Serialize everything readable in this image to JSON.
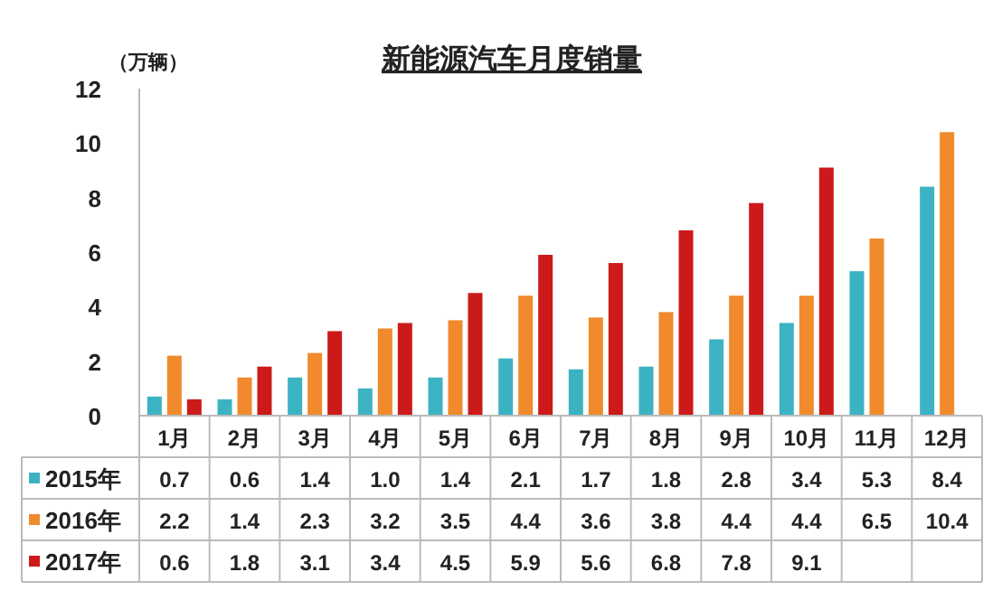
{
  "chart_data": {
    "type": "bar",
    "title": "新能源汽车月度销量",
    "ylabel": "（万辆）",
    "categories": [
      "1月",
      "2月",
      "3月",
      "4月",
      "5月",
      "6月",
      "7月",
      "8月",
      "9月",
      "10月",
      "11月",
      "12月"
    ],
    "ylim": [
      0,
      12
    ],
    "yticks": [
      0,
      2,
      4,
      6,
      8,
      10,
      12
    ],
    "legend": "bottom left",
    "series": [
      {
        "name": "2015年",
        "color": "#3bb3c3",
        "values": [
          0.7,
          0.6,
          1.4,
          1.0,
          1.4,
          2.1,
          1.7,
          1.8,
          2.8,
          3.4,
          5.3,
          8.4
        ],
        "value_labels": [
          "0.7",
          "0.6",
          "1.4",
          "1.0",
          "1.4",
          "2.1",
          "1.7",
          "1.8",
          "2.8",
          "3.4",
          "5.3",
          "8.4"
        ]
      },
      {
        "name": "2016年",
        "color": "#f08a2c",
        "values": [
          2.2,
          1.4,
          2.3,
          3.2,
          3.5,
          4.4,
          3.6,
          3.8,
          4.4,
          4.4,
          6.5,
          10.4
        ],
        "value_labels": [
          "2.2",
          "1.4",
          "2.3",
          "3.2",
          "3.5",
          "4.4",
          "3.6",
          "3.8",
          "4.4",
          "4.4",
          "6.5",
          "10.4"
        ]
      },
      {
        "name": "2017年",
        "color": "#cc1a1a",
        "values": [
          0.6,
          1.8,
          3.1,
          3.4,
          4.5,
          5.9,
          5.6,
          6.8,
          7.8,
          9.1,
          null,
          null
        ],
        "value_labels": [
          "0.6",
          "1.8",
          "3.1",
          "3.4",
          "4.5",
          "5.9",
          "5.6",
          "6.8",
          "7.8",
          "9.1",
          null,
          null
        ]
      }
    ]
  }
}
